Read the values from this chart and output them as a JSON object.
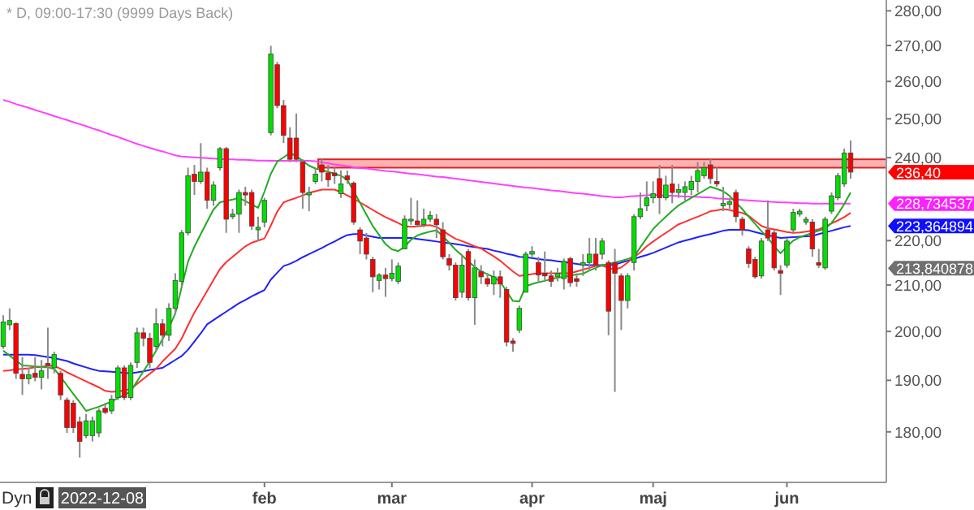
{
  "chart_data": {
    "type": "candlestick",
    "title": "* D, 09:00-17:30 (9999 Days Back)",
    "categories": [
      null,
      null,
      null,
      null,
      null,
      null,
      null,
      null,
      null,
      null,
      null,
      null,
      null,
      null,
      null,
      null,
      null,
      null,
      null,
      null,
      null,
      null,
      null,
      null,
      null,
      null,
      null,
      null,
      null,
      null,
      null,
      null,
      null,
      null,
      null,
      null,
      null,
      null,
      null,
      null,
      null,
      "feb",
      null,
      null,
      null,
      null,
      null,
      null,
      null,
      null,
      null,
      null,
      null,
      null,
      null,
      null,
      null,
      null,
      null,
      null,
      null,
      "mar",
      null,
      null,
      null,
      null,
      null,
      null,
      null,
      null,
      null,
      null,
      null,
      null,
      null,
      null,
      null,
      null,
      null,
      null,
      null,
      null,
      null,
      "apr",
      null,
      null,
      null,
      null,
      null,
      null,
      null,
      null,
      null,
      null,
      null,
      null,
      null,
      null,
      null,
      null,
      null,
      null,
      "maj",
      null,
      null,
      null,
      null,
      null,
      null,
      null,
      null,
      null,
      null,
      null,
      null,
      null,
      null,
      null,
      null,
      null,
      null,
      null,
      null,
      "jun",
      null,
      null,
      null,
      null,
      null,
      null,
      null,
      null,
      null,
      null
    ],
    "ohlc": [
      [
        196.9,
        203.4,
        196.4,
        202.0
      ],
      [
        201.4,
        204.9,
        200.3,
        202.3
      ],
      [
        201.7,
        201.9,
        190.3,
        191.4
      ],
      [
        191.2,
        194.7,
        187.1,
        190.3
      ],
      [
        190.3,
        192.5,
        189.2,
        191.1
      ],
      [
        191.4,
        194.7,
        189.8,
        190.6
      ],
      [
        190.6,
        194.1,
        188.2,
        191.9
      ],
      [
        193.4,
        200.8,
        190.3,
        193.0
      ],
      [
        192.5,
        195.8,
        191.4,
        195.2
      ],
      [
        191.4,
        191.9,
        186.1,
        187.1
      ],
      [
        186.1,
        186.6,
        179.8,
        180.8
      ],
      [
        185.5,
        186.1,
        179.8,
        180.8
      ],
      [
        181.9,
        182.9,
        175.2,
        178.2
      ],
      [
        179.3,
        183.4,
        178.8,
        182.1
      ],
      [
        179.3,
        182.9,
        178.2,
        182.1
      ],
      [
        179.8,
        184.5,
        179.0,
        184.0
      ],
      [
        184.5,
        185.5,
        183.4,
        183.7
      ],
      [
        184.0,
        187.1,
        183.4,
        186.3
      ],
      [
        186.6,
        193.0,
        186.1,
        192.5
      ],
      [
        192.5,
        193.0,
        186.1,
        186.6
      ],
      [
        186.6,
        193.6,
        186.1,
        193.0
      ],
      [
        193.6,
        200.8,
        192.5,
        199.7
      ],
      [
        199.7,
        200.8,
        196.9,
        198.6
      ],
      [
        198.6,
        199.7,
        192.5,
        193.6
      ],
      [
        196.9,
        204.9,
        195.8,
        201.6
      ],
      [
        201.6,
        202.6,
        196.9,
        199.2
      ],
      [
        199.2,
        206.0,
        198.0,
        204.9
      ],
      [
        204.9,
        212.6,
        203.7,
        211.0
      ],
      [
        210.8,
        222.5,
        209.6,
        221.8
      ],
      [
        221.8,
        237.5,
        221.2,
        235.5
      ],
      [
        235.9,
        238.2,
        230.8,
        234.1
      ],
      [
        234.1,
        243.7,
        233.5,
        236.4
      ],
      [
        236.4,
        237.5,
        227.5,
        229.5
      ],
      [
        229.5,
        234.1,
        228.2,
        233.2
      ],
      [
        237.5,
        242.7,
        236.8,
        242.3
      ],
      [
        242.3,
        242.7,
        221.8,
        225.0
      ],
      [
        225.6,
        227.5,
        225.0,
        226.2
      ],
      [
        226.2,
        232.1,
        221.8,
        231.4
      ],
      [
        231.4,
        232.8,
        228.2,
        230.8
      ],
      [
        231.4,
        232.1,
        222.5,
        223.4
      ],
      [
        222.5,
        225.6,
        219.9,
        223.1
      ],
      [
        224.3,
        230.1,
        223.1,
        229.5
      ],
      [
        246.4,
        269.9,
        245.7,
        267.6
      ],
      [
        264.6,
        265.4,
        252.8,
        253.5
      ],
      [
        253.5,
        255.0,
        243.7,
        245.7
      ],
      [
        245.0,
        247.8,
        238.9,
        239.6
      ],
      [
        245.0,
        251.4,
        238.9,
        239.6
      ],
      [
        238.9,
        239.6,
        227.5,
        231.4
      ],
      [
        230.8,
        232.8,
        226.9,
        231.4
      ],
      [
        234.1,
        237.5,
        233.5,
        235.9
      ],
      [
        238.2,
        239.6,
        234.1,
        236.4
      ],
      [
        236.2,
        238.2,
        232.8,
        234.5
      ],
      [
        236.2,
        237.5,
        233.5,
        235.5
      ],
      [
        231.1,
        236.8,
        230.1,
        233.5
      ],
      [
        235.5,
        236.8,
        233.5,
        234.5
      ],
      [
        233.7,
        234.1,
        223.7,
        224.3
      ],
      [
        222.5,
        223.1,
        216.9,
        219.9
      ],
      [
        220.6,
        221.8,
        215.7,
        216.9
      ],
      [
        215.7,
        216.3,
        208.4,
        211.8
      ],
      [
        211.0,
        212.6,
        209.0,
        212.2
      ],
      [
        212.2,
        213.8,
        207.4,
        211.4
      ],
      [
        211.4,
        215.7,
        210.8,
        212.6
      ],
      [
        210.8,
        215.0,
        210.2,
        214.2
      ],
      [
        218.1,
        225.9,
        218.1,
        225.0
      ],
      [
        224.6,
        230.1,
        223.7,
        225.0
      ],
      [
        224.6,
        229.5,
        223.1,
        223.7
      ],
      [
        223.7,
        227.5,
        223.1,
        225.0
      ],
      [
        225.0,
        226.9,
        224.3,
        225.9
      ],
      [
        225.0,
        226.2,
        220.6,
        223.7
      ],
      [
        222.5,
        224.3,
        215.7,
        216.3
      ],
      [
        215.9,
        216.9,
        213.2,
        214.4
      ],
      [
        214.4,
        215.0,
        206.6,
        207.2
      ],
      [
        208.4,
        216.9,
        207.2,
        214.4
      ],
      [
        217.5,
        218.1,
        206.6,
        207.2
      ],
      [
        207.2,
        215.7,
        201.4,
        213.8
      ],
      [
        213.0,
        214.4,
        210.2,
        211.8
      ],
      [
        211.4,
        212.6,
        209.6,
        210.2
      ],
      [
        210.2,
        213.2,
        207.8,
        211.8
      ],
      [
        211.8,
        213.2,
        207.2,
        210.2
      ],
      [
        209.0,
        209.6,
        196.9,
        197.8
      ],
      [
        198.0,
        198.6,
        195.8,
        197.5
      ],
      [
        200.3,
        205.5,
        199.7,
        204.9
      ],
      [
        208.4,
        217.5,
        208.4,
        216.9
      ],
      [
        216.9,
        218.7,
        216.3,
        217.5
      ],
      [
        215.0,
        216.3,
        210.8,
        212.2
      ],
      [
        212.6,
        217.5,
        210.8,
        212.0
      ],
      [
        212.0,
        213.2,
        209.6,
        210.8
      ],
      [
        211.8,
        213.8,
        210.8,
        212.6
      ],
      [
        211.4,
        215.9,
        209.0,
        215.3
      ],
      [
        215.9,
        216.3,
        209.6,
        210.5
      ],
      [
        211.4,
        212.6,
        209.6,
        210.8
      ],
      [
        214.4,
        216.9,
        212.0,
        215.0
      ],
      [
        215.0,
        220.6,
        213.2,
        216.9
      ],
      [
        216.9,
        220.6,
        213.2,
        214.4
      ],
      [
        216.9,
        220.6,
        215.7,
        219.9
      ],
      [
        215.0,
        215.5,
        199.2,
        204.3
      ],
      [
        215.0,
        218.1,
        187.7,
        212.6
      ],
      [
        212.0,
        212.6,
        200.3,
        206.6
      ],
      [
        206.6,
        212.6,
        204.9,
        212.0
      ],
      [
        215.0,
        226.2,
        213.2,
        225.6
      ],
      [
        225.6,
        231.4,
        225.0,
        227.5
      ],
      [
        228.2,
        234.1,
        226.9,
        230.1
      ],
      [
        230.1,
        234.1,
        228.8,
        231.1
      ],
      [
        234.8,
        238.2,
        226.2,
        230.1
      ],
      [
        230.1,
        235.5,
        229.5,
        233.2
      ],
      [
        233.5,
        238.2,
        228.8,
        231.4
      ],
      [
        231.4,
        233.5,
        230.1,
        232.1
      ],
      [
        231.4,
        234.1,
        229.5,
        232.8
      ],
      [
        232.1,
        235.5,
        230.8,
        234.1
      ],
      [
        234.1,
        238.9,
        231.4,
        236.8
      ],
      [
        235.5,
        238.9,
        234.8,
        237.5
      ],
      [
        238.2,
        239.6,
        233.5,
        234.8
      ],
      [
        234.1,
        237.5,
        232.8,
        233.5
      ],
      [
        228.2,
        232.8,
        226.9,
        228.8
      ],
      [
        228.5,
        230.1,
        227.5,
        229.2
      ],
      [
        231.4,
        232.1,
        224.3,
        225.6
      ],
      [
        225.0,
        225.6,
        221.2,
        222.5
      ],
      [
        218.1,
        218.7,
        213.8,
        214.8
      ],
      [
        215.7,
        216.3,
        211.4,
        211.8
      ],
      [
        212.0,
        220.6,
        211.4,
        219.9
      ],
      [
        222.5,
        229.5,
        219.9,
        220.6
      ],
      [
        221.8,
        222.5,
        213.2,
        213.8
      ],
      [
        213.2,
        214.4,
        207.8,
        212.6
      ],
      [
        214.4,
        220.6,
        213.8,
        219.9
      ],
      [
        222.5,
        227.5,
        221.8,
        226.6
      ],
      [
        226.2,
        227.5,
        225.6,
        226.9
      ],
      [
        224.3,
        225.6,
        223.7,
        225.0
      ],
      [
        224.3,
        225.0,
        216.3,
        218.1
      ],
      [
        215.0,
        218.1,
        213.8,
        214.4
      ],
      [
        213.8,
        225.6,
        213.4,
        225.0
      ],
      [
        226.9,
        231.4,
        226.2,
        230.6
      ],
      [
        230.1,
        236.2,
        229.5,
        235.5
      ],
      [
        233.5,
        242.3,
        232.8,
        241.2
      ],
      [
        241.2,
        244.4,
        234.8,
        236.4
      ]
    ],
    "series": [
      {
        "type": "line",
        "color": "#ff40ff",
        "values": [
          255.0,
          254.5,
          253.9,
          253.4,
          252.9,
          252.3,
          251.8,
          251.3,
          250.7,
          250.2,
          249.7,
          249.1,
          248.6,
          248.1,
          247.5,
          247.0,
          246.4,
          245.8,
          245.3,
          244.7,
          244.1,
          243.5,
          243.0,
          242.5,
          242.0,
          241.6,
          241.1,
          240.6,
          240.3,
          240.2,
          240.1,
          240.0,
          239.9,
          239.8,
          239.7,
          239.6,
          239.6,
          239.5,
          239.5,
          239.4,
          239.3,
          239.3,
          239.2,
          239.2,
          239.2,
          239.2,
          239.2,
          239.2,
          239.2,
          239.1,
          238.8,
          238.6,
          238.3,
          238.1,
          237.9,
          237.6,
          237.4,
          237.3,
          237.1,
          236.9,
          236.7,
          236.6,
          236.4,
          236.2,
          236.0,
          235.9,
          235.7,
          235.5,
          235.3,
          235.2,
          235.0,
          234.8,
          234.6,
          234.4,
          234.2,
          234.0,
          233.8,
          233.6,
          233.4,
          233.2,
          233.0,
          232.8,
          232.6,
          232.5,
          232.3,
          232.1,
          231.9,
          231.8,
          231.6,
          231.4,
          231.2,
          231.1,
          230.9,
          230.7,
          230.5,
          230.4,
          230.2,
          230.2,
          230.4,
          230.5,
          230.6,
          230.7,
          230.8,
          230.7,
          230.6,
          230.6,
          230.5,
          230.4,
          230.4,
          230.3,
          230.2,
          230.2,
          230.0,
          229.9,
          229.8,
          229.7,
          229.6,
          229.5,
          229.4,
          229.3,
          229.2,
          229.1,
          229.0,
          229.0,
          228.9,
          228.8,
          228.8,
          228.7,
          228.7,
          228.7,
          228.7,
          228.7,
          228.7,
          228.7
        ]
      },
      {
        "type": "line",
        "color": "#2020ff",
        "values": [
          195.2,
          195.2,
          195.2,
          195.2,
          195.2,
          195.1,
          194.9,
          194.7,
          194.5,
          194.2,
          193.9,
          193.4,
          193.0,
          192.6,
          192.2,
          191.9,
          191.8,
          191.7,
          191.6,
          191.5,
          191.4,
          191.6,
          191.8,
          192.1,
          192.3,
          192.5,
          193.3,
          194.1,
          194.9,
          196.2,
          197.9,
          199.6,
          201.5,
          202.4,
          203.3,
          204.2,
          205.1,
          206.0,
          206.7,
          207.5,
          208.2,
          208.9,
          211.2,
          212.7,
          214.2,
          214.7,
          215.4,
          216.2,
          216.9,
          217.6,
          218.3,
          219.1,
          219.8,
          220.6,
          221.3,
          221.5,
          221.5,
          221.2,
          220.9,
          220.6,
          220.6,
          220.6,
          220.6,
          220.6,
          220.6,
          220.4,
          220.2,
          220.0,
          219.8,
          219.6,
          219.4,
          219.2,
          219.0,
          218.7,
          218.5,
          218.3,
          218.1,
          217.7,
          217.4,
          217.0,
          216.7,
          216.3,
          216.2,
          216.0,
          215.8,
          215.6,
          215.5,
          215.3,
          215.1,
          214.9,
          214.7,
          214.5,
          214.4,
          214.4,
          214.4,
          214.4,
          214.5,
          215.0,
          215.4,
          215.8,
          216.3,
          216.7,
          217.2,
          217.8,
          218.4,
          219.0,
          219.6,
          220.0,
          220.4,
          220.8,
          221.2,
          221.5,
          221.9,
          222.3,
          222.5,
          222.5,
          222.5,
          222.4,
          222.0,
          221.6,
          221.3,
          220.9,
          220.6,
          220.7,
          220.8,
          220.9,
          221.0,
          221.1,
          221.5,
          221.9,
          222.3,
          222.7,
          223.1,
          223.4
        ]
      },
      {
        "type": "line",
        "color": "#ff3030",
        "values": [
          191.9,
          192.0,
          192.2,
          192.3,
          192.4,
          192.6,
          192.7,
          192.9,
          192.9,
          192.3,
          191.6,
          191.0,
          190.4,
          189.8,
          189.2,
          188.6,
          187.9,
          187.7,
          187.8,
          188.0,
          188.3,
          189.3,
          190.3,
          191.3,
          192.3,
          193.8,
          195.1,
          196.4,
          198.5,
          201.3,
          204.0,
          206.3,
          208.7,
          211.1,
          213.5,
          215.1,
          216.3,
          217.5,
          218.7,
          219.5,
          220.0,
          220.5,
          223.5,
          226.8,
          229.0,
          229.6,
          230.1,
          230.7,
          231.3,
          231.7,
          232.1,
          232.1,
          232.1,
          231.5,
          230.7,
          229.9,
          229.0,
          228.1,
          227.2,
          226.3,
          225.5,
          224.8,
          224.1,
          223.3,
          223.2,
          223.3,
          223.5,
          223.6,
          223.2,
          222.3,
          221.3,
          220.4,
          219.9,
          219.3,
          218.7,
          218.2,
          217.3,
          216.4,
          215.4,
          214.2,
          213.0,
          212.0,
          212.2,
          212.4,
          212.6,
          212.6,
          212.6,
          212.6,
          212.6,
          212.6,
          213.0,
          213.4,
          213.8,
          214.2,
          214.3,
          213.8,
          213.4,
          213.9,
          215.0,
          216.2,
          217.3,
          218.7,
          219.8,
          220.8,
          221.8,
          222.8,
          223.8,
          224.4,
          225.0,
          225.6,
          226.2,
          226.9,
          227.1,
          227.4,
          227.2,
          226.8,
          226.5,
          225.8,
          224.6,
          223.4,
          222.9,
          222.6,
          222.3,
          222.0,
          221.8,
          221.9,
          222.1,
          222.3,
          222.6,
          223.3,
          224.0,
          224.7,
          225.5,
          226.5
        ]
      },
      {
        "type": "line",
        "color": "#22aa22",
        "values": [
          196.0,
          195.0,
          194.0,
          193.0,
          192.9,
          192.8,
          192.7,
          192.6,
          192.3,
          190.7,
          189.0,
          187.3,
          185.7,
          184.0,
          184.4,
          184.8,
          185.3,
          185.8,
          186.5,
          187.1,
          187.8,
          189.8,
          191.8,
          193.8,
          196.0,
          198.4,
          200.8,
          203.8,
          209.5,
          215.2,
          218.6,
          221.5,
          224.4,
          227.3,
          229.0,
          229.4,
          229.7,
          230.1,
          229.3,
          228.5,
          227.7,
          231.6,
          236.0,
          239.0,
          240.1,
          241.2,
          240.4,
          239.2,
          238.0,
          237.3,
          236.9,
          236.5,
          236.0,
          235.5,
          234.5,
          231.7,
          228.9,
          226.1,
          223.4,
          221.3,
          219.2,
          218.0,
          217.6,
          218.6,
          220.2,
          221.2,
          221.7,
          222.1,
          222.4,
          221.0,
          219.5,
          217.9,
          216.6,
          215.3,
          214.0,
          213.0,
          212.4,
          211.7,
          210.7,
          208.6,
          206.5,
          206.4,
          209.7,
          210.2,
          210.6,
          210.9,
          211.3,
          211.6,
          211.8,
          212.1,
          212.3,
          212.5,
          213.2,
          213.8,
          214.4,
          214.6,
          215.0,
          215.4,
          215.8,
          216.3,
          218.5,
          220.6,
          222.7,
          224.2,
          225.6,
          227.0,
          228.3,
          229.2,
          230.1,
          231.0,
          231.9,
          232.8,
          232.3,
          231.7,
          230.6,
          229.0,
          227.4,
          225.6,
          223.9,
          222.2,
          220.7,
          218.7,
          217.1,
          218.6,
          220.0,
          220.8,
          221.3,
          221.8,
          222.3,
          222.8,
          224.1,
          226.2,
          228.6,
          231.4
        ]
      }
    ],
    "ylim": [
      170.7,
      283.2
    ],
    "yticks": [
      {
        "value": 180,
        "label": "180,00"
      },
      {
        "value": 190,
        "label": "190,00"
      },
      {
        "value": 200,
        "label": "200,00"
      },
      {
        "value": 210,
        "label": "210,00"
      },
      {
        "value": 220,
        "label": "220,00"
      },
      {
        "value": 240,
        "label": "240,00"
      },
      {
        "value": 250,
        "label": "250,00"
      },
      {
        "value": 260,
        "label": "260,00"
      },
      {
        "value": 270,
        "label": "270,00"
      },
      {
        "value": 280,
        "label": "280,00"
      }
    ],
    "log": "y",
    "bands": [
      {
        "axis": "y",
        "from": 237.5,
        "to": 239.6,
        "color": "#f7a0a0"
      }
    ],
    "annotations": [
      "236,40",
      "228,734537",
      "223,364894",
      "213,840878",
      "Dyn",
      "2022-12-08"
    ]
  }
}
